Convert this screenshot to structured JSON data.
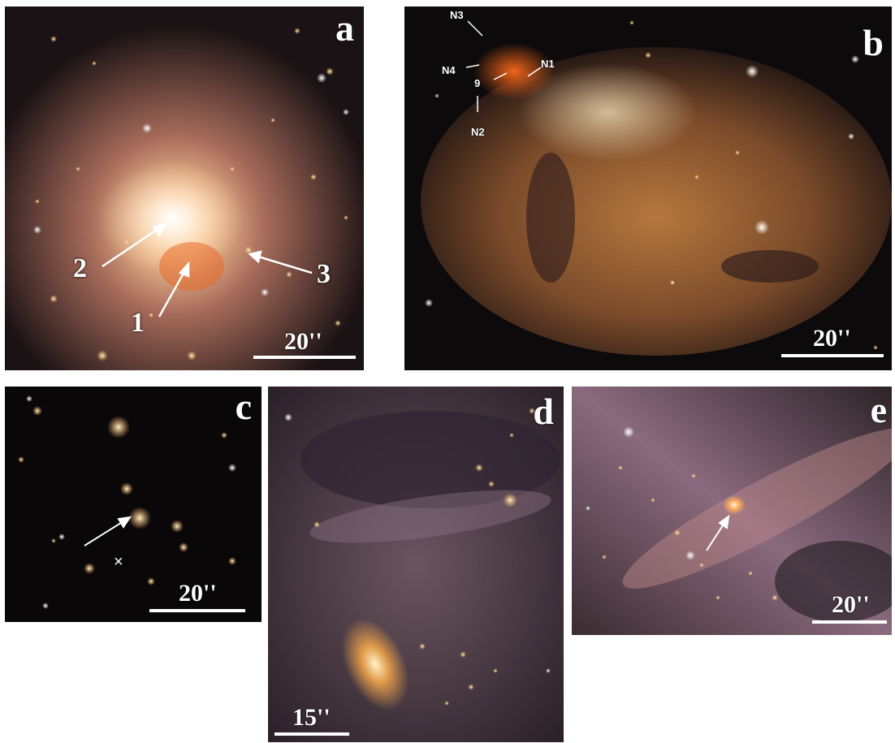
{
  "panels": {
    "a": {
      "letter": "a",
      "scale": "20''",
      "labels": [
        "1",
        "2",
        "3"
      ]
    },
    "b": {
      "letter": "b",
      "scale": "20''",
      "labels": [
        "N1",
        "N2",
        "N3",
        "N4",
        "9"
      ]
    },
    "c": {
      "letter": "c",
      "scale": "20''",
      "marker": "×"
    },
    "d": {
      "letter": "d",
      "scale": "15''"
    },
    "e": {
      "letter": "e",
      "scale": "20''"
    }
  }
}
